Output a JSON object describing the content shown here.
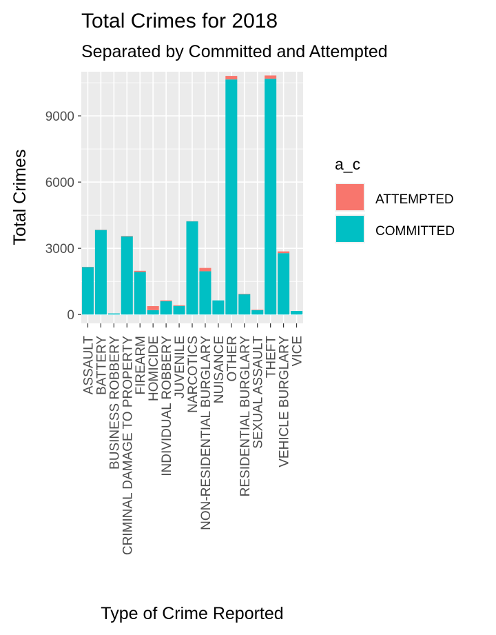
{
  "chart_data": {
    "type": "bar",
    "stacked": true,
    "title": "Total Crimes for 2018",
    "subtitle": "Separated by Committed and Attempted",
    "xlabel": "Type of Crime Reported",
    "ylabel": "Total Crimes",
    "ylim": [
      -400,
      11000
    ],
    "yticks": [
      0,
      3000,
      6000,
      9000
    ],
    "grid": true,
    "legend": {
      "title": "a_c",
      "position": "right"
    },
    "categories": [
      "ASSAULT",
      "BATTERY",
      "BUSINESS ROBBERY",
      "CRIMINAL DAMAGE TO PROPERTY",
      "FIREARM",
      "HOMICIDE",
      "INDIVIDUAL ROBBERY",
      "JUVENILE",
      "NARCOTICS",
      "NON-RESIDENTIAL BURGLARY",
      "NUISANCE",
      "OTHER",
      "RESIDENTIAL BURGLARY",
      "SEXUAL ASSAULT",
      "THEFT",
      "VEHICLE BURGLARY",
      "VICE"
    ],
    "series": [
      {
        "name": "COMMITTED",
        "color": "#00BFC4",
        "values": [
          2150,
          3830,
          50,
          3540,
          1930,
          200,
          600,
          390,
          4220,
          1960,
          640,
          10650,
          920,
          200,
          10680,
          2780,
          160
        ]
      },
      {
        "name": "ATTEMPTED",
        "color": "#F8766D",
        "values": [
          10,
          10,
          0,
          20,
          50,
          180,
          40,
          30,
          10,
          150,
          0,
          160,
          20,
          20,
          150,
          80,
          0
        ]
      }
    ]
  }
}
